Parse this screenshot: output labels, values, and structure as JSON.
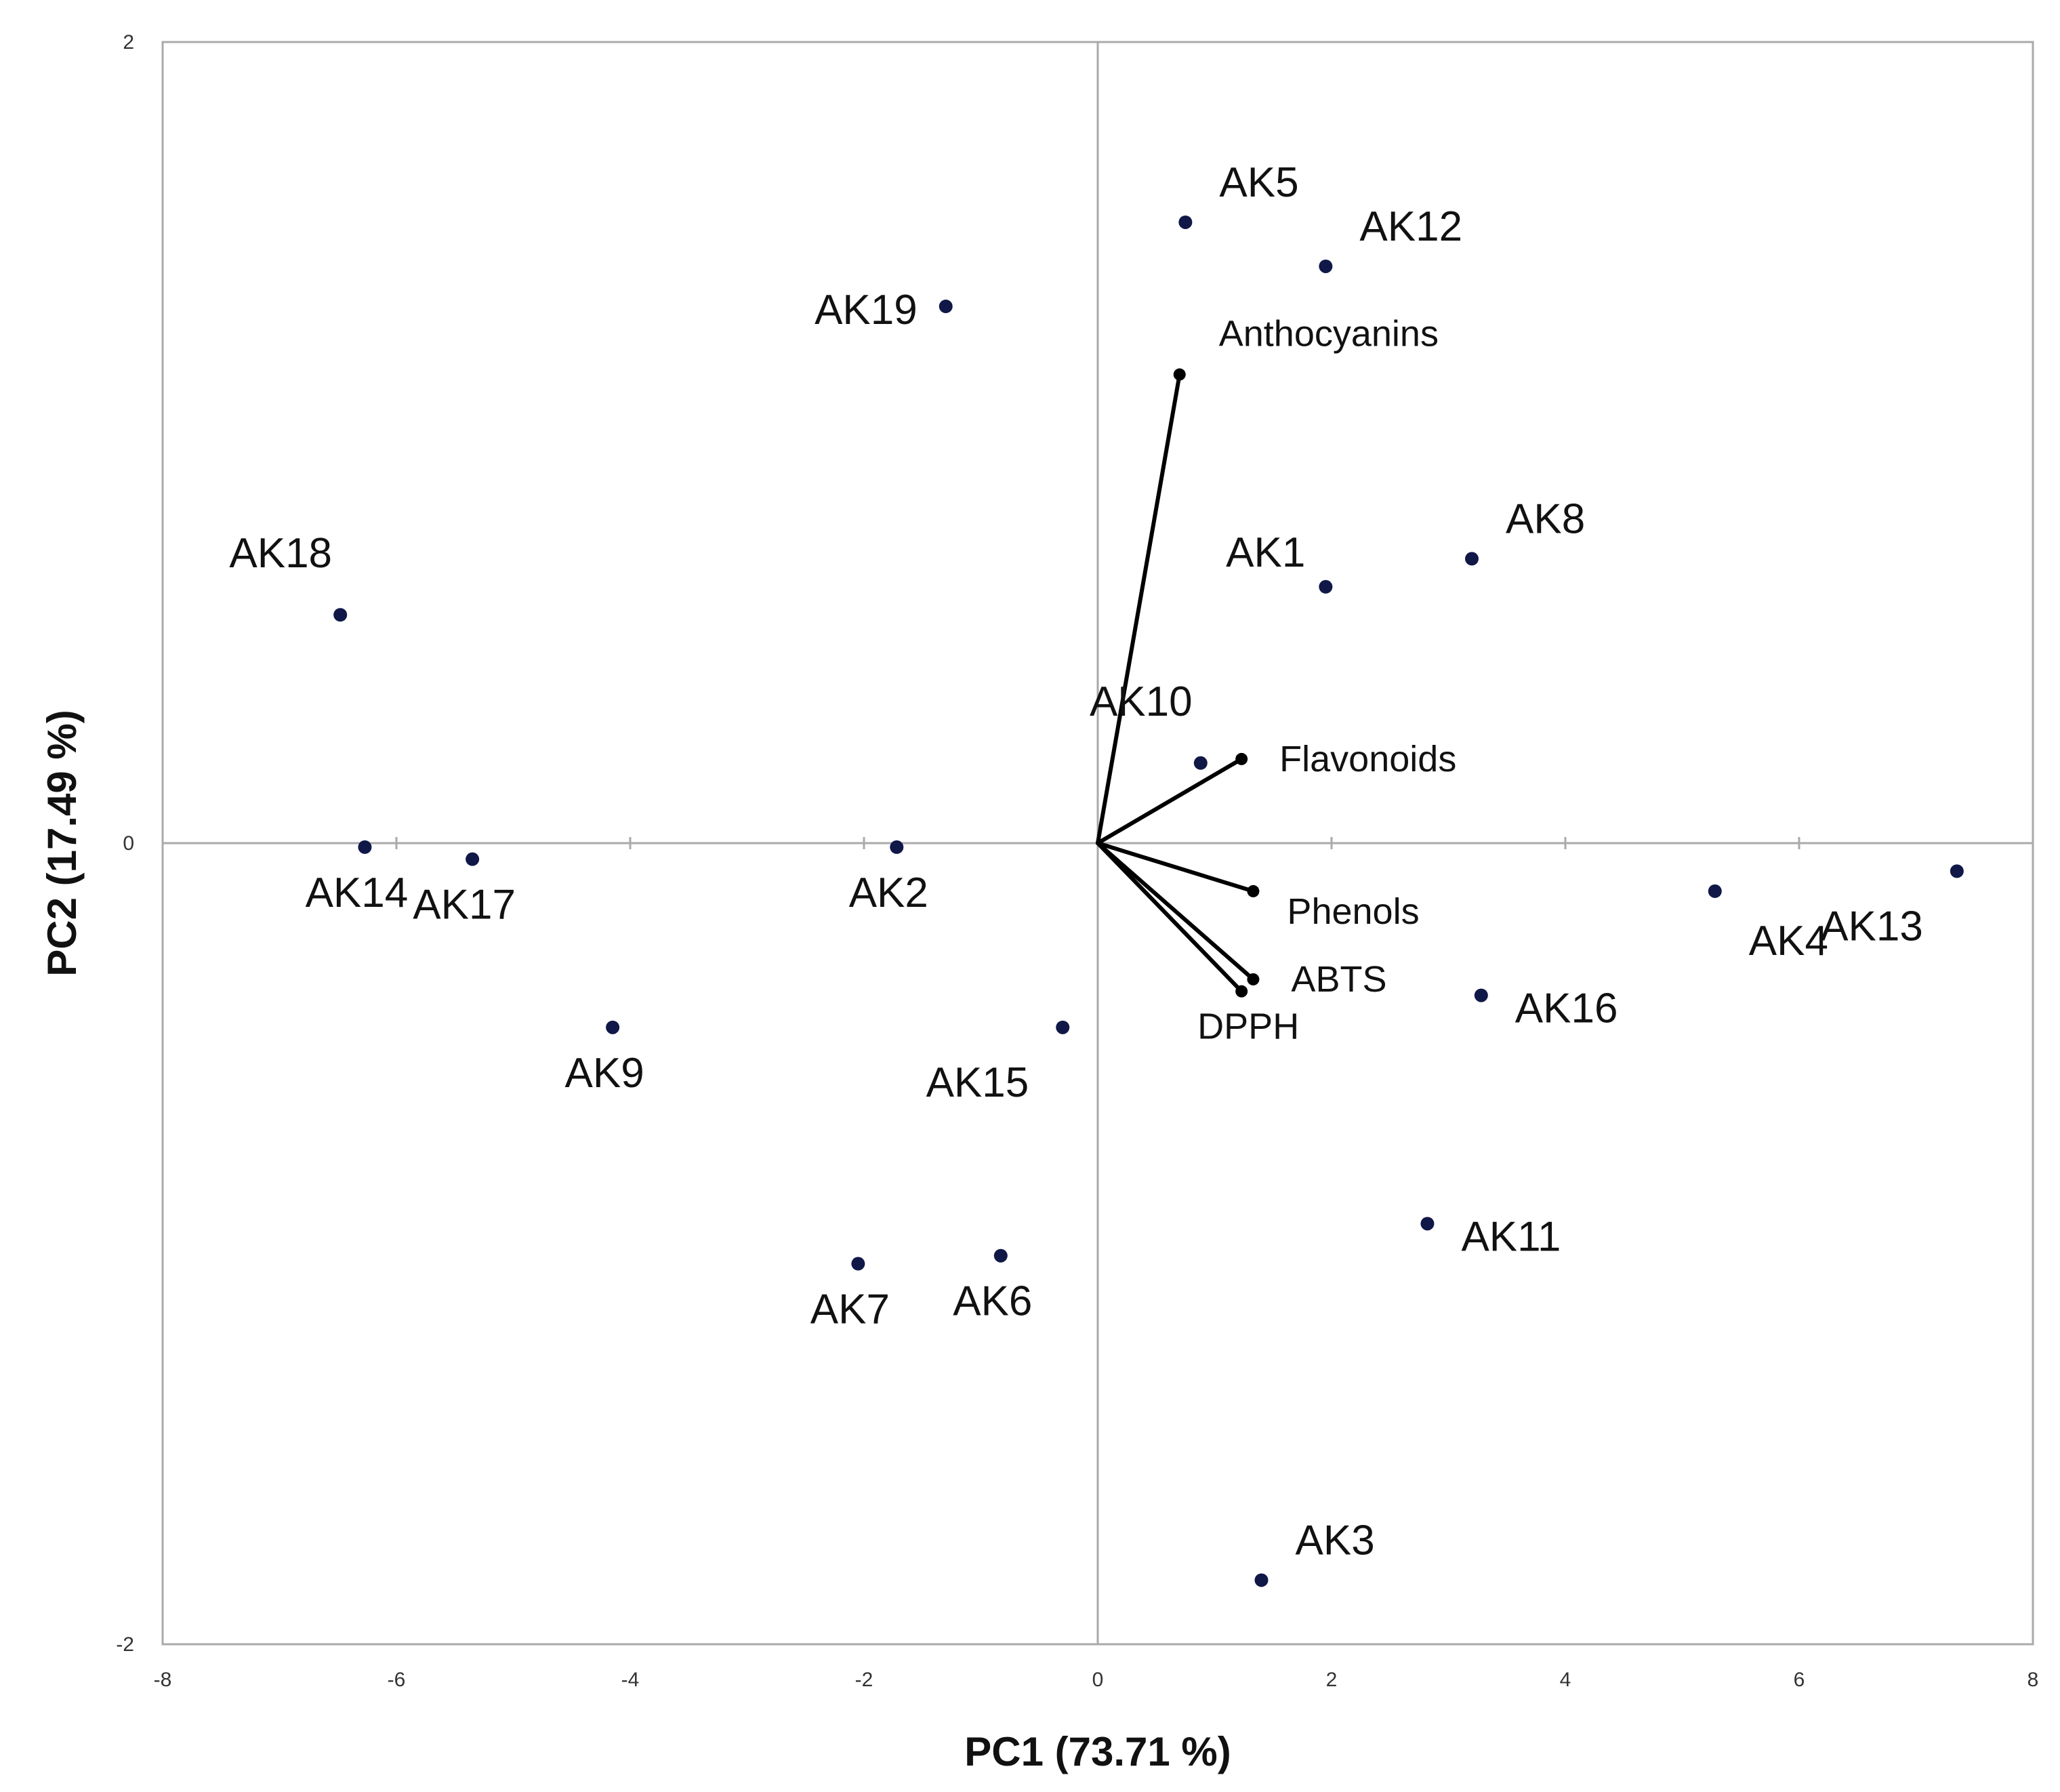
{
  "chart_data": {
    "type": "scatter",
    "title": "",
    "xlabel": "PC1 (73.71 %)",
    "ylabel": "PC2 (17.49 %)",
    "xlim": [
      -8,
      8
    ],
    "ylim": [
      -2,
      2
    ],
    "xticks": [
      "-8",
      "-6",
      "-4",
      "-2",
      "0",
      "2",
      "4",
      "6",
      "8"
    ],
    "yticks": [
      "2",
      "0",
      "-2"
    ],
    "grid": false,
    "legend": "none",
    "colors": {
      "point": "#101848",
      "vector": "#000000",
      "frame": "#aaaaaa",
      "zero_line": "#aaaaaa"
    },
    "points": [
      {
        "label": "AK1",
        "x": 1.95,
        "y": 0.64,
        "label_pos": "upper-left"
      },
      {
        "label": "AK2",
        "x": -1.72,
        "y": -0.01,
        "label_pos": "below"
      },
      {
        "label": "AK3",
        "x": 1.4,
        "y": -1.84,
        "label_pos": "upper-right"
      },
      {
        "label": "AK4",
        "x": 5.28,
        "y": -0.12,
        "label_pos": "lower-right"
      },
      {
        "label": "AK5",
        "x": 0.75,
        "y": 1.55,
        "label_pos": "upper-right"
      },
      {
        "label": "AK6",
        "x": -0.83,
        "y": -1.03,
        "label_pos": "below"
      },
      {
        "label": "AK7",
        "x": -2.05,
        "y": -1.05,
        "label_pos": "below"
      },
      {
        "label": "AK8",
        "x": 3.2,
        "y": 0.71,
        "label_pos": "upper-right"
      },
      {
        "label": "AK9",
        "x": -4.15,
        "y": -0.46,
        "label_pos": "below"
      },
      {
        "label": "AK10",
        "x": 0.88,
        "y": 0.2,
        "label_pos": "above"
      },
      {
        "label": "AK11",
        "x": 2.82,
        "y": -0.95,
        "label_pos": "right"
      },
      {
        "label": "AK12",
        "x": 1.95,
        "y": 1.44,
        "label_pos": "upper-right"
      },
      {
        "label": "AK13",
        "x": 7.35,
        "y": -0.07,
        "label_pos": "lower-left"
      },
      {
        "label": "AK14",
        "x": -6.27,
        "y": -0.01,
        "label_pos": "below"
      },
      {
        "label": "AK15",
        "x": -0.3,
        "y": -0.46,
        "label_pos": "lower-left"
      },
      {
        "label": "AK16",
        "x": 3.28,
        "y": -0.38,
        "label_pos": "right"
      },
      {
        "label": "AK17",
        "x": -5.35,
        "y": -0.04,
        "label_pos": "below"
      },
      {
        "label": "AK18",
        "x": -6.48,
        "y": 0.57,
        "label_pos": "above"
      },
      {
        "label": "AK19",
        "x": -1.3,
        "y": 1.34,
        "label_pos": "left"
      }
    ],
    "vectors": [
      {
        "label": "Anthocyanins",
        "x": 0.7,
        "y": 1.17,
        "label_pos": "above-right"
      },
      {
        "label": "Flavonoids",
        "x": 1.23,
        "y": 0.21,
        "label_pos": "right"
      },
      {
        "label": "Phenols",
        "x": 1.33,
        "y": -0.12,
        "label_pos": "lower-right"
      },
      {
        "label": "ABTS",
        "x": 1.33,
        "y": -0.34,
        "label_pos": "right"
      },
      {
        "label": "DPPH",
        "x": 1.23,
        "y": -0.37,
        "label_pos": "below"
      }
    ]
  }
}
